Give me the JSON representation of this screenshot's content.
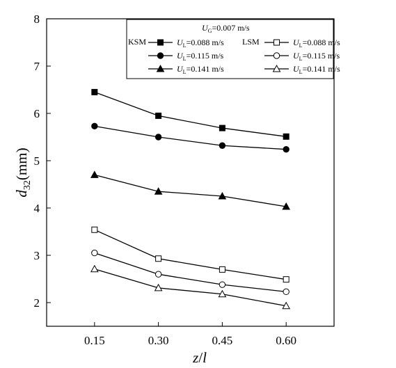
{
  "chart_data": {
    "type": "line",
    "xlabel_main": "z",
    "xlabel_sep": "/",
    "xlabel_sub": "l",
    "ylabel_main": "d",
    "ylabel_sub": "32",
    "ylabel_unit": "(mm)",
    "categories": [
      "0.15",
      "0.30",
      "0.45",
      "0.60"
    ],
    "x": [
      0.15,
      0.3,
      0.45,
      0.6
    ],
    "xlim": [
      0.0375,
      0.7125
    ],
    "ylim": [
      1.5,
      8
    ],
    "yticks": [
      2,
      3,
      4,
      5,
      6,
      7,
      8
    ],
    "grid": false,
    "legend": {
      "placement": "top-right",
      "header_main": "U",
      "header_sub": "G",
      "header_value": "=0.007 m/s",
      "group_ksm": "KSM",
      "group_lsm": "LSM"
    },
    "series": [
      {
        "group": "KSM",
        "label_main": "U",
        "label_sub": "L",
        "label_value": "=0.088 m/s",
        "marker": "square",
        "filled": true,
        "values": [
          6.45,
          5.95,
          5.69,
          5.51
        ]
      },
      {
        "group": "KSM",
        "label_main": "U",
        "label_sub": "L",
        "label_value": "=0.115 m/s",
        "marker": "circle",
        "filled": true,
        "values": [
          5.73,
          5.5,
          5.32,
          5.24
        ]
      },
      {
        "group": "KSM",
        "label_main": "U",
        "label_sub": "L",
        "label_value": "=0.141 m/s",
        "marker": "triangle",
        "filled": true,
        "values": [
          4.7,
          4.35,
          4.25,
          4.03
        ]
      },
      {
        "group": "LSM",
        "label_main": "U",
        "label_sub": "L",
        "label_value": "=0.088 m/s",
        "marker": "square",
        "filled": false,
        "values": [
          3.54,
          2.93,
          2.7,
          2.49
        ]
      },
      {
        "group": "LSM",
        "label_main": "U",
        "label_sub": "L",
        "label_value": "=0.115 m/s",
        "marker": "circle",
        "filled": false,
        "values": [
          3.05,
          2.6,
          2.38,
          2.23
        ]
      },
      {
        "group": "LSM",
        "label_main": "U",
        "label_sub": "L",
        "label_value": "=0.141 m/s",
        "marker": "triangle",
        "filled": false,
        "values": [
          2.71,
          2.31,
          2.18,
          1.93
        ]
      }
    ]
  }
}
